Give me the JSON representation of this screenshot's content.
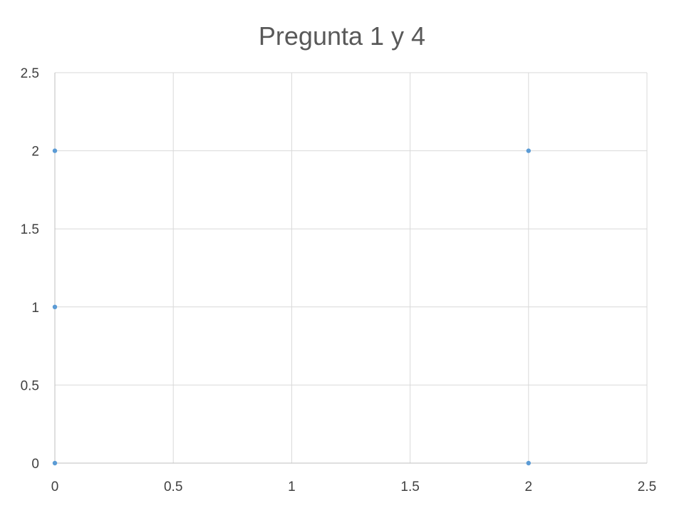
{
  "chart_data": {
    "type": "scatter",
    "title": "Pregunta 1 y 4",
    "xlabel": "",
    "ylabel": "",
    "xlim": [
      0,
      2.5
    ],
    "ylim": [
      0,
      2.5
    ],
    "x_ticks": [
      0,
      0.5,
      1,
      1.5,
      2,
      2.5
    ],
    "y_ticks": [
      0,
      0.5,
      1,
      1.5,
      2,
      2.5
    ],
    "x_tick_labels": [
      "0",
      "0.5",
      "1",
      "1.5",
      "2",
      "2.5"
    ],
    "y_tick_labels": [
      "0",
      "0.5",
      "1",
      "1.5",
      "2",
      "2.5"
    ],
    "grid": true,
    "legend": "none",
    "series": [
      {
        "color": "#5b9bd5",
        "points": [
          {
            "x": 0,
            "y": 2
          },
          {
            "x": 0,
            "y": 1
          },
          {
            "x": 0,
            "y": 0
          },
          {
            "x": 2,
            "y": 2
          },
          {
            "x": 2,
            "y": 0
          }
        ]
      }
    ]
  }
}
